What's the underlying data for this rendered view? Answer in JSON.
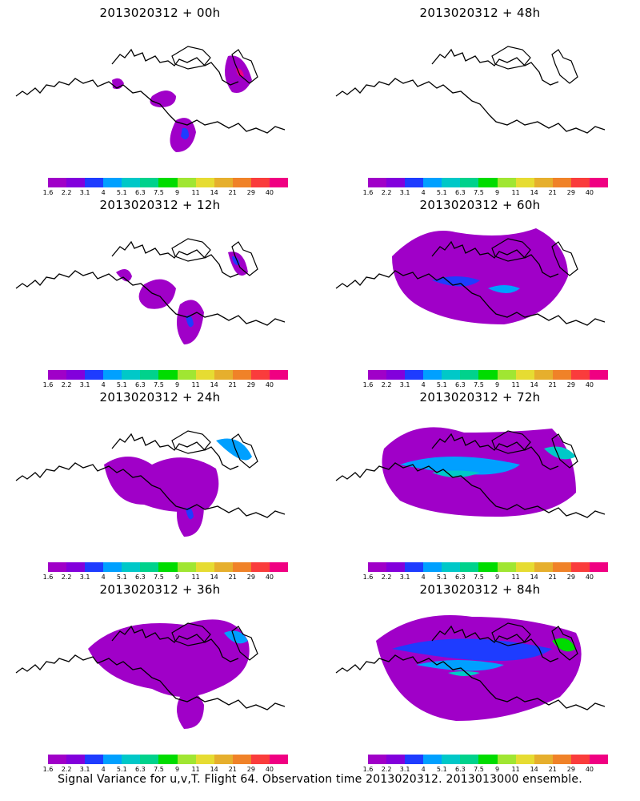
{
  "panels": [
    {
      "title": "2013020312 + 00h",
      "forecast_hour": 0
    },
    {
      "title": "2013020312 + 48h",
      "forecast_hour": 48
    },
    {
      "title": "2013020312 + 12h",
      "forecast_hour": 12
    },
    {
      "title": "2013020312 + 60h",
      "forecast_hour": 60
    },
    {
      "title": "2013020312 + 24h",
      "forecast_hour": 24
    },
    {
      "title": "2013020312 + 72h",
      "forecast_hour": 72
    },
    {
      "title": "2013020312 + 36h",
      "forecast_hour": 36
    },
    {
      "title": "2013020312 + 84h",
      "forecast_hour": 84
    }
  ],
  "colorbar": {
    "labels": [
      "1.6",
      "2.2",
      "3.1",
      "4",
      "5.1",
      "6.3",
      "7.5",
      "9",
      "11",
      "14",
      "21",
      "29",
      "40"
    ],
    "colors": [
      "#a000c8",
      "#8200dc",
      "#1e3cff",
      "#00a0ff",
      "#00c8c8",
      "#00d28c",
      "#00dc00",
      "#a0e632",
      "#e6dc32",
      "#e6af2d",
      "#f08228",
      "#fa3c3c",
      "#f00082"
    ]
  },
  "footer": "Signal Variance for u,v,T. Flight 64. Observation time 2013020312. 2013013000 ensemble."
}
